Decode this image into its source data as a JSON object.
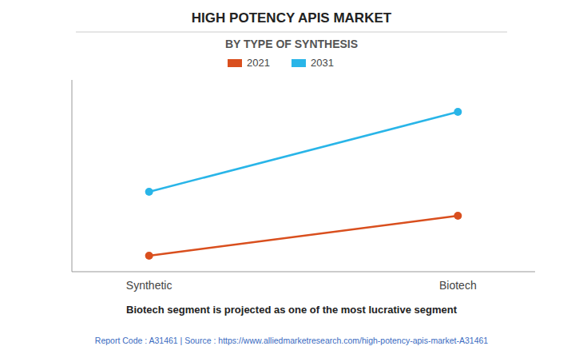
{
  "chart_data": {
    "type": "line",
    "title": "HIGH POTENCY APIS MARKET",
    "subtitle": "BY TYPE OF SYNTHESIS",
    "categories": [
      "Synthetic",
      "Biotech"
    ],
    "series": [
      {
        "name": "2021",
        "color": "#d94f1e",
        "values": [
          1,
          3.5
        ]
      },
      {
        "name": "2031",
        "color": "#29b5e8",
        "values": [
          5,
          10
        ]
      }
    ],
    "ylim": [
      0,
      12
    ],
    "yticks": [],
    "grid": false,
    "tick_labels": "x",
    "legend": "top",
    "marker": "circle",
    "footnote": "Biotech segment is projected as one of the most lucrative segment",
    "source": "Report Code : A31461  |  Source : https://www.alliedmarketresearch.com/high-potency-apis-market-A31461"
  }
}
